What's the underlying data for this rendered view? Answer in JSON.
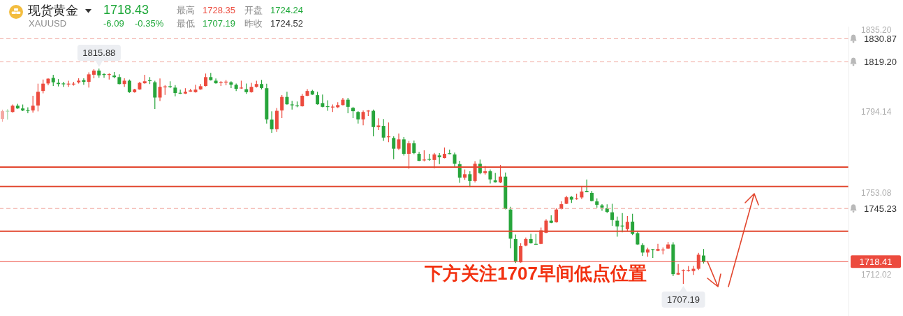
{
  "chart_data": {
    "type": "candlestick",
    "title": "现货黄金",
    "subtitle": "XAUUSD",
    "annotations": [
      "1718.43",
      "-6.09",
      "-0.35%",
      "最高",
      "1728.35",
      "开盘",
      "1724.24",
      "最低",
      "1707.19",
      "昨收",
      "1724.52",
      "下方关注1707早间低点位置",
      "1815.88",
      "1707.19"
    ],
    "categories": [
      null,
      null,
      null,
      null,
      null,
      null,
      null,
      null,
      null,
      null,
      null,
      null,
      null,
      null,
      null,
      null,
      null,
      null,
      null,
      null,
      null,
      null,
      null,
      null,
      null,
      null,
      null,
      null,
      null,
      null,
      null,
      null,
      null,
      null,
      null,
      null,
      null,
      null,
      null,
      null,
      null,
      null,
      null,
      null,
      null,
      null,
      null,
      null,
      null,
      null,
      null,
      null,
      null,
      null,
      null,
      null,
      null,
      null,
      null,
      null,
      null,
      null,
      null,
      null,
      null,
      null,
      null,
      null,
      null,
      null,
      null,
      null,
      null,
      null,
      null,
      null,
      null,
      null,
      null,
      null,
      null,
      null,
      null,
      null,
      null,
      null,
      null,
      null,
      null,
      null,
      null,
      null,
      null,
      null,
      null,
      null,
      null,
      null,
      null,
      null,
      null,
      null,
      null,
      null,
      null,
      null,
      null,
      null,
      null,
      null,
      null,
      null,
      null,
      null,
      null,
      null,
      null,
      null,
      null,
      null,
      null,
      null,
      null,
      null,
      null,
      null,
      null,
      null,
      null,
      null,
      null,
      null,
      null,
      null,
      null,
      null,
      null,
      null,
      null,
      null,
      null,
      null,
      null,
      null,
      null,
      null,
      null,
      null,
      null,
      null,
      null,
      null,
      null,
      null,
      null,
      null,
      null,
      null,
      null,
      null,
      null,
      null,
      null,
      null,
      null,
      null,
      null
    ],
    "ohlc": [
      [
        1790.4,
        1795.1,
        1789.0,
        1794.3
      ],
      [
        1794.3,
        1795.3,
        1790.1,
        1793.9
      ],
      [
        1793.9,
        1797.7,
        1793.6,
        1797.1
      ],
      [
        1797.1,
        1798.0,
        1795.5,
        1795.7
      ],
      [
        1795.7,
        1797.7,
        1794.3,
        1794.7
      ],
      [
        1794.6,
        1796.3,
        1793.3,
        1794.4
      ],
      [
        1794.7,
        1802.1,
        1793.6,
        1797.1
      ],
      [
        1797.2,
        1808.2,
        1794.2,
        1804.1
      ],
      [
        1804.5,
        1810.3,
        1803.3,
        1808.2
      ],
      [
        1808.3,
        1810.9,
        1807.4,
        1810.7
      ],
      [
        1811.1,
        1812.7,
        1807.0,
        1808.9
      ],
      [
        1808.6,
        1810.5,
        1806.8,
        1808.0
      ],
      [
        1808.1,
        1809.1,
        1806.6,
        1807.9
      ],
      [
        1807.7,
        1809.7,
        1806.6,
        1808.0
      ],
      [
        1807.8,
        1809.1,
        1807.2,
        1808.0
      ],
      [
        1808.9,
        1810.9,
        1808.3,
        1809.7
      ],
      [
        1810.0,
        1810.9,
        1807.6,
        1809.1
      ],
      [
        1809.1,
        1813.9,
        1806.2,
        1812.9
      ],
      [
        1812.7,
        1815.5,
        1810.9,
        1814.8
      ],
      [
        1814.8,
        1815.88,
        1811.2,
        1812.4
      ],
      [
        1812.8,
        1813.5,
        1811.2,
        1812.5
      ],
      [
        1812.5,
        1813.5,
        1810.3,
        1812.8
      ],
      [
        1812.3,
        1814.1,
        1810.9,
        1811.5
      ],
      [
        1811.5,
        1812.9,
        1807.8,
        1808.0
      ],
      [
        1808.0,
        1810.9,
        1806.6,
        1809.7
      ],
      [
        1809.7,
        1810.3,
        1803.6,
        1803.9
      ],
      [
        1803.9,
        1805.6,
        1803.7,
        1805.3
      ],
      [
        1805.3,
        1809.1,
        1805.1,
        1808.6
      ],
      [
        1808.4,
        1812.7,
        1808.2,
        1809.4
      ],
      [
        1809.7,
        1811.5,
        1808.0,
        1809.4
      ],
      [
        1808.9,
        1809.7,
        1795.4,
        1801.2
      ],
      [
        1801.2,
        1810.8,
        1799.4,
        1806.6
      ],
      [
        1806.4,
        1807.5,
        1802.5,
        1806.6
      ],
      [
        1806.7,
        1809.4,
        1806.0,
        1806.5
      ],
      [
        1806.2,
        1807.5,
        1801.8,
        1803.5
      ],
      [
        1803.4,
        1805.2,
        1803.0,
        1803.2
      ],
      [
        1803.2,
        1805.9,
        1803.0,
        1804.1
      ],
      [
        1804.2,
        1805.6,
        1804.0,
        1804.8
      ],
      [
        1803.9,
        1807.6,
        1803.7,
        1805.2
      ],
      [
        1805.3,
        1808.0,
        1805.1,
        1806.9
      ],
      [
        1807.0,
        1813.3,
        1806.8,
        1811.5
      ],
      [
        1811.5,
        1813.6,
        1809.8,
        1810.0
      ],
      [
        1809.7,
        1810.8,
        1808.2,
        1808.4
      ],
      [
        1808.5,
        1809.5,
        1807.0,
        1808.7
      ],
      [
        1808.8,
        1810.0,
        1807.4,
        1809.0
      ],
      [
        1808.9,
        1809.4,
        1806.0,
        1807.7
      ],
      [
        1807.6,
        1808.3,
        1804.5,
        1805.6
      ],
      [
        1805.8,
        1809.7,
        1805.6,
        1806.0
      ],
      [
        1805.4,
        1808.3,
        1803.1,
        1803.9
      ],
      [
        1803.9,
        1808.6,
        1803.7,
        1806.6
      ],
      [
        1806.6,
        1809.7,
        1806.2,
        1808.0
      ],
      [
        1808.0,
        1810.1,
        1805.3,
        1806.0
      ],
      [
        1805.9,
        1808.2,
        1788.1,
        1790.2
      ],
      [
        1790.1,
        1794.2,
        1783.4,
        1785.2
      ],
      [
        1785.2,
        1795.9,
        1783.8,
        1794.5
      ],
      [
        1794.7,
        1802.4,
        1790.8,
        1801.5
      ],
      [
        1801.5,
        1804.1,
        1797.6,
        1797.8
      ],
      [
        1797.5,
        1799.5,
        1795.1,
        1797.3
      ],
      [
        1797.0,
        1799.2,
        1796.3,
        1796.8
      ],
      [
        1796.8,
        1803.1,
        1796.6,
        1802.1
      ],
      [
        1802.1,
        1805.4,
        1801.9,
        1804.5
      ],
      [
        1804.5,
        1805.1,
        1802.5,
        1802.7
      ],
      [
        1802.4,
        1804.1,
        1797.6,
        1797.8
      ],
      [
        1798.4,
        1802.7,
        1796.3,
        1796.5
      ],
      [
        1796.6,
        1799.8,
        1794.5,
        1796.4
      ],
      [
        1796.1,
        1797.7,
        1793.9,
        1796.4
      ],
      [
        1796.3,
        1798.8,
        1795.9,
        1797.4
      ],
      [
        1797.4,
        1801.0,
        1797.2,
        1800.1
      ],
      [
        1800.1,
        1801.0,
        1793.3,
        1796.5
      ],
      [
        1796.0,
        1796.5,
        1790.8,
        1794.3
      ],
      [
        1793.9,
        1794.3,
        1788.1,
        1790.2
      ],
      [
        1790.2,
        1794.7,
        1787.2,
        1793.9
      ],
      [
        1794.2,
        1794.9,
        1791.9,
        1794.4
      ],
      [
        1794.5,
        1795.1,
        1781.6,
        1786.3
      ],
      [
        1786.3,
        1790.7,
        1784.8,
        1787.1
      ],
      [
        1786.9,
        1790.4,
        1779.3,
        1781.0
      ],
      [
        1781.2,
        1788.6,
        1778.7,
        1781.4
      ],
      [
        1780.8,
        1781.6,
        1770.1,
        1775.4
      ],
      [
        1775.4,
        1783.0,
        1774.8,
        1780.1
      ],
      [
        1780.1,
        1781.3,
        1771.9,
        1772.8
      ],
      [
        1772.8,
        1779.3,
        1765.2,
        1778.1
      ],
      [
        1778.1,
        1779.5,
        1772.6,
        1773.2
      ],
      [
        1772.8,
        1773.8,
        1769.1,
        1769.3
      ],
      [
        1769.5,
        1774.6,
        1769.0,
        1769.7
      ],
      [
        1770.0,
        1772.8,
        1769.3,
        1769.8
      ],
      [
        1769.7,
        1773.3,
        1765.5,
        1772.5
      ],
      [
        1772.0,
        1773.2,
        1767.6,
        1771.1
      ],
      [
        1770.7,
        1776.0,
        1770.5,
        1772.8
      ],
      [
        1772.9,
        1774.9,
        1772.6,
        1772.7
      ],
      [
        1772.5,
        1773.4,
        1766.4,
        1767.8
      ],
      [
        1767.6,
        1769.3,
        1758.2,
        1760.8
      ],
      [
        1760.8,
        1764.9,
        1759.7,
        1762.5
      ],
      [
        1762.5,
        1764.0,
        1755.9,
        1759.1
      ],
      [
        1759.1,
        1769.1,
        1758.4,
        1767.8
      ],
      [
        1767.8,
        1769.9,
        1762.5,
        1763.1
      ],
      [
        1763.1,
        1766.7,
        1762.3,
        1764.0
      ],
      [
        1764.0,
        1764.9,
        1757.8,
        1759.9
      ],
      [
        1759.4,
        1763.2,
        1758.3,
        1758.5
      ],
      [
        1758.4,
        1767.2,
        1758.0,
        1761.3
      ],
      [
        1761.3,
        1763.4,
        1744.8,
        1745.0
      ],
      [
        1744.7,
        1746.1,
        1725.1,
        1730.0
      ],
      [
        1729.8,
        1732.1,
        1717.7,
        1718.6
      ],
      [
        1718.1,
        1727.7,
        1717.9,
        1726.3
      ],
      [
        1726.5,
        1730.6,
        1726.2,
        1729.8
      ],
      [
        1729.8,
        1732.4,
        1727.5,
        1727.7
      ],
      [
        1727.2,
        1732.4,
        1726.9,
        1727.0
      ],
      [
        1727.4,
        1735.6,
        1727.2,
        1734.2
      ],
      [
        1733.0,
        1739.8,
        1732.8,
        1739.1
      ],
      [
        1739.1,
        1741.8,
        1737.8,
        1738.0
      ],
      [
        1738.3,
        1745.3,
        1738.1,
        1744.7
      ],
      [
        1745.0,
        1748.8,
        1744.8,
        1747.4
      ],
      [
        1747.6,
        1751.7,
        1747.4,
        1750.9
      ],
      [
        1751.1,
        1751.5,
        1748.0,
        1749.7
      ],
      [
        1749.9,
        1752.7,
        1749.6,
        1750.1
      ],
      [
        1750.8,
        1756.4,
        1750.0,
        1753.8
      ],
      [
        1754.1,
        1759.9,
        1753.4,
        1753.5
      ],
      [
        1753.1,
        1754.1,
        1748.8,
        1749.0
      ],
      [
        1748.8,
        1750.3,
        1745.7,
        1747.1
      ],
      [
        1746.8,
        1747.4,
        1744.1,
        1745.7
      ],
      [
        1745.3,
        1747.3,
        1742.9,
        1743.5
      ],
      [
        1743.3,
        1747.6,
        1736.5,
        1739.4
      ],
      [
        1739.1,
        1741.2,
        1731.0,
        1736.2
      ],
      [
        1736.4,
        1742.9,
        1733.2,
        1736.2
      ],
      [
        1734.8,
        1741.4,
        1733.6,
        1738.5
      ],
      [
        1738.6,
        1742.6,
        1731.8,
        1732.4
      ],
      [
        1732.8,
        1733.6,
        1726.9,
        1727.1
      ],
      [
        1726.8,
        1727.7,
        1721.3,
        1723.0
      ],
      [
        1723.0,
        1725.4,
        1720.9,
        1724.6
      ],
      [
        1724.5,
        1724.8,
        1720.3,
        1724.3
      ],
      [
        1723.9,
        1727.4,
        1723.7,
        1724.8
      ],
      [
        1724.1,
        1725.6,
        1722.1,
        1724.3
      ],
      [
        1725.0,
        1728.35,
        1724.8,
        1727.1
      ],
      [
        1727.1,
        1728.2,
        1711.1,
        1712.1
      ],
      [
        1711.9,
        1717.2,
        1711.7,
        1712.7
      ],
      [
        1713.7,
        1714.5,
        1707.19,
        1714.0
      ],
      [
        1713.8,
        1716.2,
        1713.4,
        1714.0
      ],
      [
        1713.7,
        1716.3,
        1711.7,
        1714.8
      ],
      [
        1714.8,
        1722.8,
        1714.2,
        1721.9
      ],
      [
        1721.5,
        1724.8,
        1717.5,
        1718.4
      ],
      null,
      null,
      null,
      null,
      null,
      null,
      null,
      null,
      null,
      null,
      null,
      null,
      null,
      null,
      null,
      null,
      null,
      null,
      null,
      null,
      null,
      null,
      null,
      null,
      null,
      null,
      null,
      null
    ],
    "colors": [
      "#f4a9a3",
      "#a3d7a8",
      "#ec4b3e",
      "#27a53b",
      "#27a53b",
      "#27a53b",
      "#ec4b3e",
      "#ec4b3e",
      "#ec4b3e",
      "#ec4b3e",
      "#27a53b",
      "#27a53b",
      "#27a53b",
      "#ec4b3e",
      "#ec4b3e",
      "#ec4b3e",
      "#27a53b",
      "#ec4b3e",
      "#ec4b3e",
      "#27a53b",
      "#27a53b",
      "#ec4b3e",
      "#27a53b",
      "#27a53b",
      "#ec4b3e",
      "#27a53b",
      "#ec4b3e",
      "#ec4b3e",
      "#ec4b3e",
      "#27a53b",
      "#27a53b",
      "#ec4b3e",
      "#ec4b3e",
      "#27a53b",
      "#27a53b",
      "#27a53b",
      "#ec4b3e",
      "#ec4b3e",
      "#ec4b3e",
      "#ec4b3e",
      "#ec4b3e",
      "#27a53b",
      "#27a53b",
      "#ec4b3e",
      "#ec4b3e",
      "#27a53b",
      "#27a53b",
      "#ec4b3e",
      "#27a53b",
      "#ec4b3e",
      "#ec4b3e",
      "#27a53b",
      "#27a53b",
      "#27a53b",
      "#ec4b3e",
      "#ec4b3e",
      "#27a53b",
      "#27a53b",
      "#27a53b",
      "#ec4b3e",
      "#ec4b3e",
      "#27a53b",
      "#27a53b",
      "#27a53b",
      "#27a53b",
      "#ec4b3e",
      "#ec4b3e",
      "#ec4b3e",
      "#27a53b",
      "#27a53b",
      "#27a53b",
      "#ec4b3e",
      "#ec4b3e",
      "#27a53b",
      "#ec4b3e",
      "#27a53b",
      "#ec4b3e",
      "#27a53b",
      "#ec4b3e",
      "#27a53b",
      "#ec4b3e",
      "#27a53b",
      "#27a53b",
      "#ec4b3e",
      "#27a53b",
      "#ec4b3e",
      "#27a53b",
      "#ec4b3e",
      "#27a53b",
      "#27a53b",
      "#27a53b",
      "#ec4b3e",
      "#27a53b",
      "#ec4b3e",
      "#27a53b",
      "#ec4b3e",
      "#27a53b",
      "#27a53b",
      "#ec4b3e",
      "#27a53b",
      "#27a53b",
      "#27a53b",
      "#ec4b3e",
      "#ec4b3e",
      "#27a53b",
      "#27a53b",
      "#ec4b3e",
      "#ec4b3e",
      "#27a53b",
      "#ec4b3e",
      "#ec4b3e",
      "#ec4b3e",
      "#27a53b",
      "#ec4b3e",
      "#ec4b3e",
      "#27a53b",
      "#27a53b",
      "#27a53b",
      "#27a53b",
      "#27a53b",
      "#27a53b",
      "#27a53b",
      "#27a53b",
      "#ec4b3e",
      "#27a53b",
      "#27a53b",
      "#27a53b",
      "#ec4b3e",
      "#27a53b",
      "#ec4b3e",
      "#ec4b3e",
      "#ec4b3e",
      "#27a53b",
      "#ec4b3e",
      "#ec4b3e",
      "#ec4b3e",
      "#ec4b3e",
      "#ec4b3e",
      "#27a53b",
      null,
      null,
      null,
      null,
      null,
      null,
      null,
      null,
      null,
      null,
      null,
      null,
      null,
      null,
      null,
      null,
      null,
      null,
      null,
      null,
      null,
      null,
      null,
      null,
      null,
      null,
      null,
      null
    ],
    "ylim": [
      1691,
      1837
    ],
    "yticks": [
      {
        "value": 1712.02,
        "label": "1712.02"
      },
      {
        "value": 1753.08,
        "label": "1753.08"
      },
      {
        "value": 1794.14,
        "label": "1794.14"
      },
      {
        "value": 1835.2,
        "label": "1835.20"
      }
    ],
    "ref_lines": [
      {
        "axis": "y",
        "value": 1830.87,
        "label": "1830.87",
        "color": "#f0a49c",
        "line_style": "dashed"
      },
      {
        "axis": "y",
        "value": 1819.2,
        "label": "1819.20",
        "color": "#f0a49c",
        "line_style": "dashed"
      },
      {
        "axis": "y",
        "value": 1745.23,
        "label": "1745.23",
        "color": "#f0a49c",
        "line_style": "dashed"
      },
      {
        "axis": "y",
        "value": 1766.1,
        "color": "#e2472f"
      },
      {
        "axis": "y",
        "value": 1756.3,
        "color": "#e2472f"
      },
      {
        "axis": "y",
        "value": 1733.8,
        "color": "#e2472f"
      },
      {
        "axis": "y",
        "value": 1718.41,
        "label": "1718.41",
        "color": "#ec4b3e"
      }
    ]
  }
}
